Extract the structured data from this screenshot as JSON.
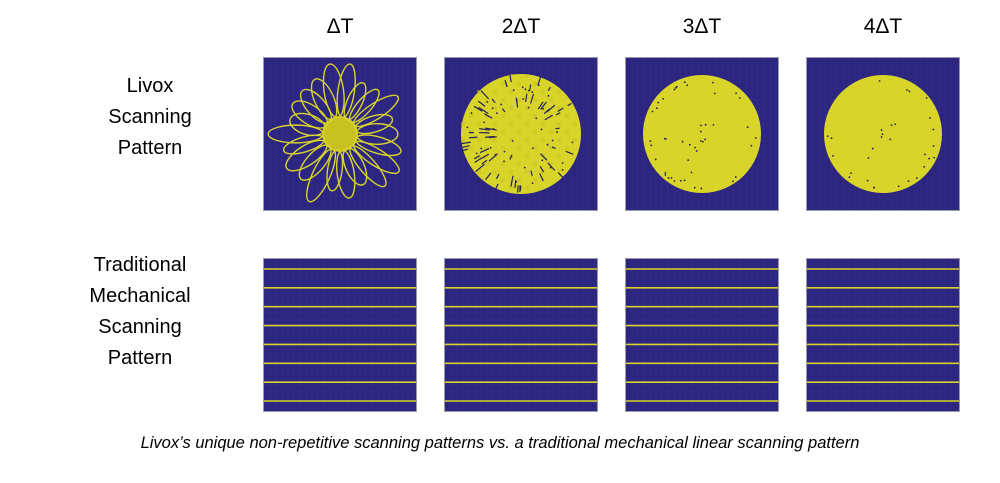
{
  "columns": [
    {
      "label": "ΔT",
      "pattern_density": 1
    },
    {
      "label": "2ΔT",
      "pattern_density": 2
    },
    {
      "label": "3ΔT",
      "pattern_density": 3
    },
    {
      "label": "4ΔT",
      "pattern_density": 4
    }
  ],
  "rows": [
    {
      "id": "livox",
      "label_lines": [
        "Livox",
        "Scanning",
        "Pattern"
      ]
    },
    {
      "id": "traditional",
      "label_lines": [
        "Traditional",
        "Mechanical",
        "Scanning",
        "Pattern"
      ],
      "scan_line_count": 8
    }
  ],
  "caption": "Livox’s unique non-repetitive scanning patterns vs. a traditional mechanical linear scanning pattern",
  "colors": {
    "background": "#2b2580",
    "grid_line": "#3a3590",
    "pattern_yellow": "#d8d42a",
    "pattern_yellow_dark": "#c7c21f",
    "points_dark": "#26225e"
  }
}
